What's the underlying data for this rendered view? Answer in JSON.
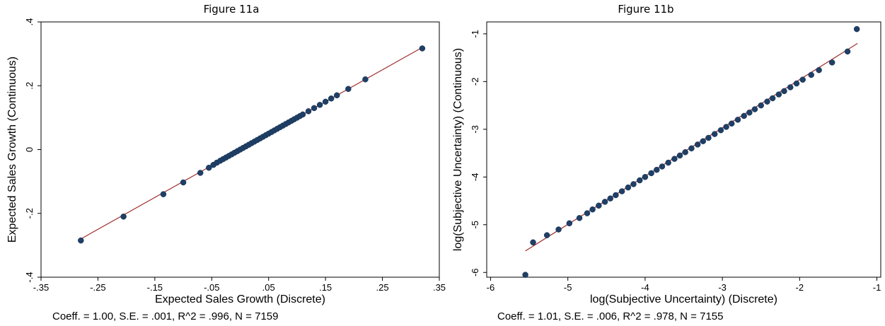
{
  "figures": [
    {
      "title": "Figure 11a",
      "caption": "Coeff. = 1.00, S.E. = .001, R^2 = .996, N = 7159"
    },
    {
      "title": "Figure 11b",
      "caption": "Coeff. = 1.01, S.E. = .006, R^2 = .978, N = 7155"
    }
  ],
  "chart_data": [
    {
      "type": "scatter",
      "title": "Figure 11a",
      "xlabel": "Expected Sales Growth (Discrete)",
      "ylabel": "Expected Sales Growth (Continuous)",
      "xlim": [
        -0.35,
        0.35
      ],
      "ylim": [
        -0.4,
        0.4
      ],
      "xticks": [
        -0.35,
        -0.25,
        -0.15,
        -0.05,
        0.05,
        0.15,
        0.25,
        0.35
      ],
      "xtick_labels": [
        "-.35",
        "-.25",
        "-.15",
        "-.05",
        ".05",
        ".15",
        ".25",
        ".35"
      ],
      "yticks": [
        -0.4,
        -0.2,
        0,
        0.2,
        0.4
      ],
      "ytick_labels": [
        "-.4",
        "-.2",
        "0",
        ".2",
        ".4"
      ],
      "grid": false,
      "fit_line": {
        "x": [
          -0.28,
          0.32
        ],
        "y": [
          -0.28,
          0.32
        ]
      },
      "points": {
        "x": [
          -0.28,
          -0.205,
          -0.135,
          -0.1,
          -0.07,
          -0.055,
          -0.047,
          -0.041,
          -0.035,
          -0.03,
          -0.025,
          -0.02,
          -0.015,
          -0.01,
          -0.005,
          0.0,
          0.005,
          0.01,
          0.015,
          0.02,
          0.025,
          0.03,
          0.035,
          0.04,
          0.045,
          0.05,
          0.055,
          0.06,
          0.065,
          0.07,
          0.075,
          0.08,
          0.085,
          0.09,
          0.095,
          0.1,
          0.105,
          0.11,
          0.12,
          0.13,
          0.14,
          0.15,
          0.16,
          0.17,
          0.19,
          0.22,
          0.32
        ],
        "y": [
          -0.285,
          -0.21,
          -0.14,
          -0.103,
          -0.073,
          -0.057,
          -0.048,
          -0.041,
          -0.035,
          -0.03,
          -0.025,
          -0.02,
          -0.015,
          -0.01,
          -0.005,
          0.0,
          0.005,
          0.01,
          0.015,
          0.02,
          0.025,
          0.03,
          0.035,
          0.04,
          0.045,
          0.05,
          0.055,
          0.06,
          0.065,
          0.07,
          0.075,
          0.08,
          0.085,
          0.09,
          0.095,
          0.1,
          0.105,
          0.11,
          0.12,
          0.13,
          0.14,
          0.15,
          0.16,
          0.17,
          0.19,
          0.22,
          0.317
        ]
      },
      "colors": {
        "points": "#1f3f66",
        "fit_line": "#a03030"
      }
    },
    {
      "type": "scatter",
      "title": "Figure 11b",
      "xlabel": "log(Subjective Uncertainty) (Discrete)",
      "ylabel": "log(Subjective Uncertainty) (Continuous)",
      "xlim": [
        -6.05,
        -0.95
      ],
      "ylim": [
        -6.1,
        -0.75
      ],
      "xticks": [
        -6,
        -5,
        -4,
        -3,
        -2,
        -1
      ],
      "xtick_labels": [
        "-6",
        "-5",
        "-4",
        "-3",
        "-2",
        "-1"
      ],
      "yticks": [
        -6,
        -5,
        -4,
        -3,
        -2,
        -1
      ],
      "ytick_labels": [
        "-6",
        "-5",
        "-4",
        "-3",
        "-2",
        "-1"
      ],
      "grid": false,
      "fit_line": {
        "x": [
          -5.55,
          -1.25
        ],
        "y": [
          -5.55,
          -1.2
        ]
      },
      "points": {
        "x": [
          -5.55,
          -5.45,
          -5.27,
          -5.12,
          -4.98,
          -4.85,
          -4.75,
          -4.68,
          -4.6,
          -4.52,
          -4.45,
          -4.38,
          -4.3,
          -4.22,
          -4.15,
          -4.07,
          -4.0,
          -3.92,
          -3.85,
          -3.78,
          -3.7,
          -3.62,
          -3.55,
          -3.48,
          -3.4,
          -3.32,
          -3.25,
          -3.18,
          -3.1,
          -3.02,
          -2.95,
          -2.88,
          -2.8,
          -2.72,
          -2.65,
          -2.58,
          -2.5,
          -2.42,
          -2.35,
          -2.27,
          -2.2,
          -2.12,
          -2.04,
          -1.96,
          -1.85,
          -1.75,
          -1.58,
          -1.38,
          -1.26
        ],
        "y": [
          -6.05,
          -5.37,
          -5.22,
          -5.1,
          -4.97,
          -4.86,
          -4.76,
          -4.68,
          -4.6,
          -4.52,
          -4.45,
          -4.38,
          -4.3,
          -4.22,
          -4.15,
          -4.07,
          -4.0,
          -3.92,
          -3.85,
          -3.78,
          -3.7,
          -3.62,
          -3.55,
          -3.48,
          -3.4,
          -3.32,
          -3.25,
          -3.18,
          -3.1,
          -3.02,
          -2.95,
          -2.88,
          -2.8,
          -2.72,
          -2.65,
          -2.58,
          -2.5,
          -2.42,
          -2.35,
          -2.27,
          -2.2,
          -2.12,
          -2.04,
          -1.96,
          -1.86,
          -1.76,
          -1.6,
          -1.37,
          -0.9
        ]
      },
      "colors": {
        "points": "#1f3f66",
        "fit_line": "#a03030"
      }
    }
  ]
}
